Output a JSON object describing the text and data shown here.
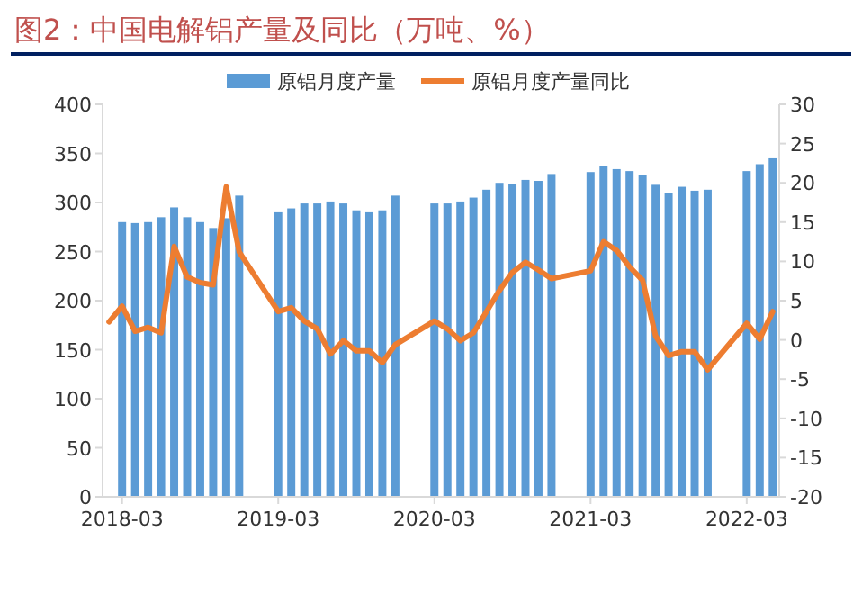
{
  "chart_data": {
    "type": "bar",
    "title": "图2：中国电解铝产量及同比（万吨、%）",
    "categories": [
      null,
      "2018-03",
      null,
      null,
      null,
      null,
      null,
      null,
      null,
      null,
      null,
      null,
      null,
      "2019-03",
      null,
      null,
      null,
      null,
      null,
      null,
      null,
      null,
      null,
      null,
      null,
      "2020-03",
      null,
      null,
      null,
      null,
      null,
      null,
      null,
      null,
      null,
      null,
      null,
      "2021-03",
      null,
      null,
      null,
      null,
      null,
      null,
      null,
      null,
      null,
      null,
      null,
      "2022-03",
      null,
      null
    ],
    "series": [
      {
        "name": "原铝月度产量",
        "color": "#5b9bd5",
        "values": [
          null,
          280,
          279,
          280,
          285,
          295,
          285,
          280,
          274,
          284,
          307,
          null,
          null,
          290,
          294,
          299,
          299,
          301,
          299,
          292,
          290,
          292,
          307,
          null,
          null,
          299,
          299,
          301,
          305,
          313,
          320,
          319,
          323,
          322,
          329,
          null,
          null,
          331,
          337,
          334,
          332,
          328,
          318,
          310,
          316,
          312,
          313,
          null,
          null,
          332,
          339,
          345
        ]
      },
      {
        "name": "原铝月度产量同比",
        "type": "line",
        "axis": "y2",
        "color": "#ed7d31",
        "values": [
          2.3,
          4.3,
          1.1,
          1.6,
          0.9,
          11.9,
          8.0,
          7.3,
          7.0,
          19.5,
          11.2,
          null,
          null,
          3.6,
          4.1,
          2.4,
          1.4,
          -1.8,
          -0.1,
          -1.4,
          -1.4,
          -2.9,
          -0.6,
          null,
          null,
          2.4,
          1.4,
          -0.1,
          0.9,
          3.6,
          6.3,
          8.6,
          9.9,
          8.9,
          7.8,
          null,
          null,
          8.8,
          12.5,
          11.4,
          9.3,
          7.6,
          0.5,
          -2.0,
          -1.5,
          -1.5,
          -3.8,
          null,
          null,
          2.1,
          0.1,
          3.6
        ]
      }
    ],
    "ylim": [
      0,
      400
    ],
    "yticks": [
      0,
      50,
      100,
      150,
      200,
      250,
      300,
      350,
      400
    ],
    "y2lim": [
      -20,
      30
    ],
    "y2ticks": [
      -20,
      -15,
      -10,
      -5,
      0,
      5,
      10,
      15,
      20,
      25,
      30
    ],
    "legend": "top",
    "grid": false,
    "line_style": "solid"
  }
}
